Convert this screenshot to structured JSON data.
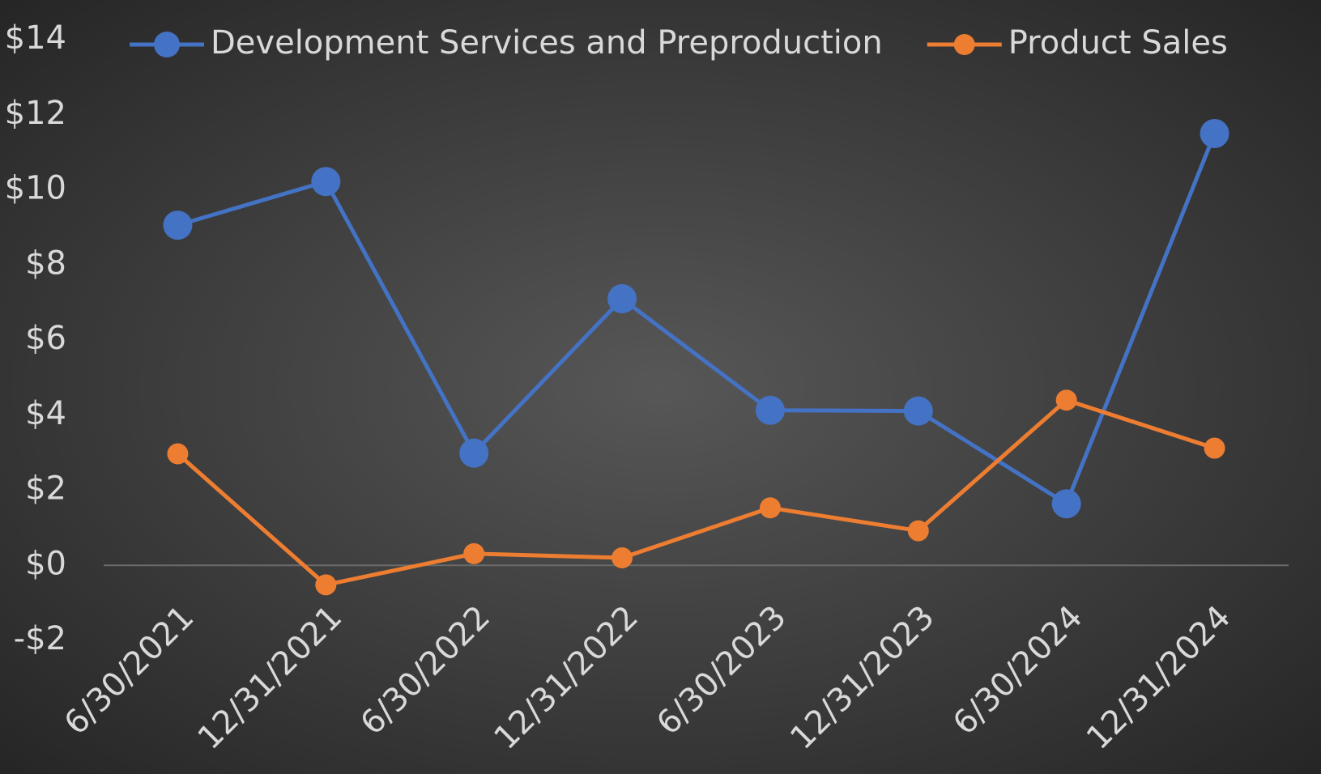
{
  "chart_data": {
    "type": "line",
    "categories": [
      "6/30/2021",
      "12/31/2021",
      "6/30/2022",
      "12/31/2022",
      "6/30/2023",
      "12/31/2023",
      "6/30/2024",
      "12/31/2024"
    ],
    "series": [
      {
        "name": "Development Services and Preproduction",
        "color": "#4472c4",
        "values": [
          9.06,
          10.22,
          2.99,
          7.1,
          4.13,
          4.11,
          1.64,
          11.5
        ]
      },
      {
        "name": "Product Sales",
        "color": "#ed7d31",
        "values": [
          2.97,
          -0.52,
          0.31,
          0.2,
          1.53,
          0.92,
          4.4,
          3.12
        ]
      }
    ],
    "ylim": [
      -2,
      14
    ],
    "yticks": [
      {
        "value": -2,
        "label": "-$2"
      },
      {
        "value": 0,
        "label": "$0"
      },
      {
        "value": 2,
        "label": "$2"
      },
      {
        "value": 4,
        "label": "$4"
      },
      {
        "value": 6,
        "label": "$6"
      },
      {
        "value": 8,
        "label": "$8"
      },
      {
        "value": 10,
        "label": "$10"
      },
      {
        "value": 12,
        "label": "$12"
      },
      {
        "value": 14,
        "label": "$14"
      }
    ],
    "grid": false,
    "legend": "top"
  }
}
